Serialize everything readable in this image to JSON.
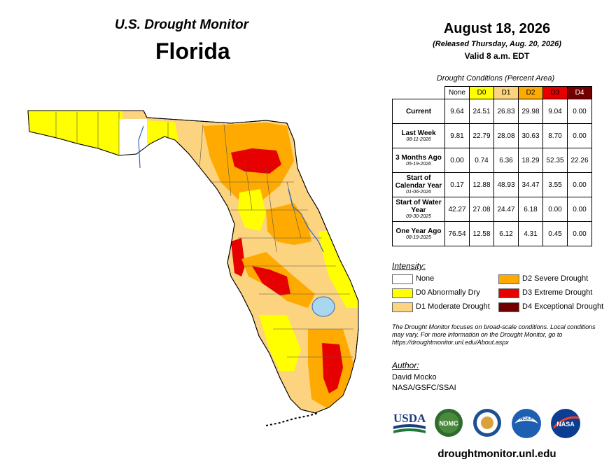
{
  "header": {
    "subtitle": "U.S. Drought Monitor",
    "state": "Florida",
    "date": "August 18, 2026",
    "released": "(Released Thursday, Aug. 20, 2026)",
    "valid": "Valid 8 a.m. EDT"
  },
  "table": {
    "caption": "Drought Conditions (Percent Area)",
    "columns": [
      "None",
      "D0",
      "D1",
      "D2",
      "D3",
      "D4"
    ],
    "column_colors": [
      "#ffffff",
      "#ffff00",
      "#fcd37f",
      "#ffaa00",
      "#e60000",
      "#730000"
    ],
    "rows": [
      {
        "label": "Current",
        "date": "",
        "values": [
          "9.64",
          "24.51",
          "26.83",
          "29.98",
          "9.04",
          "0.00"
        ]
      },
      {
        "label": "Last Week",
        "date": "08-11-2026",
        "values": [
          "9.81",
          "22.79",
          "28.08",
          "30.63",
          "8.70",
          "0.00"
        ]
      },
      {
        "label": "3 Months Ago",
        "date": "05-19-2026",
        "values": [
          "0.00",
          "0.74",
          "6.36",
          "18.29",
          "52.35",
          "22.26"
        ]
      },
      {
        "label": "Start of Calendar Year",
        "date": "01-06-2026",
        "values": [
          "0.17",
          "12.88",
          "48.93",
          "34.47",
          "3.55",
          "0.00"
        ]
      },
      {
        "label": "Start of Water Year",
        "date": "09-30-2025",
        "values": [
          "42.27",
          "27.08",
          "24.47",
          "6.18",
          "0.00",
          "0.00"
        ]
      },
      {
        "label": "One Year Ago",
        "date": "08-19-2025",
        "values": [
          "76.54",
          "12.58",
          "6.12",
          "4.31",
          "0.45",
          "0.00"
        ]
      }
    ]
  },
  "legend": {
    "title": "Intensity:",
    "items": [
      {
        "label": "None",
        "color": "#ffffff"
      },
      {
        "label": "D0 Abnormally Dry",
        "color": "#ffff00"
      },
      {
        "label": "D1 Moderate Drought",
        "color": "#fcd37f"
      },
      {
        "label": "D2 Severe Drought",
        "color": "#ffaa00"
      },
      {
        "label": "D3 Extreme Drought",
        "color": "#e60000"
      },
      {
        "label": "D4 Exceptional Drought",
        "color": "#730000"
      }
    ]
  },
  "note": "The Drought Monitor focuses on broad-scale conditions. Local conditions may vary. For more information on the Drought Monitor, go to https://droughtmonitor.unl.edu/About.aspx",
  "author": {
    "label": "Author:",
    "name": "David Mocko",
    "org": "NASA/GSFC/SSAI"
  },
  "logos": {
    "usda": "USDA",
    "ndmc": "NDMC",
    "noaa": "NOAA",
    "nasa": "NASA"
  },
  "footer_url": "droughtmonitor.unl.edu"
}
